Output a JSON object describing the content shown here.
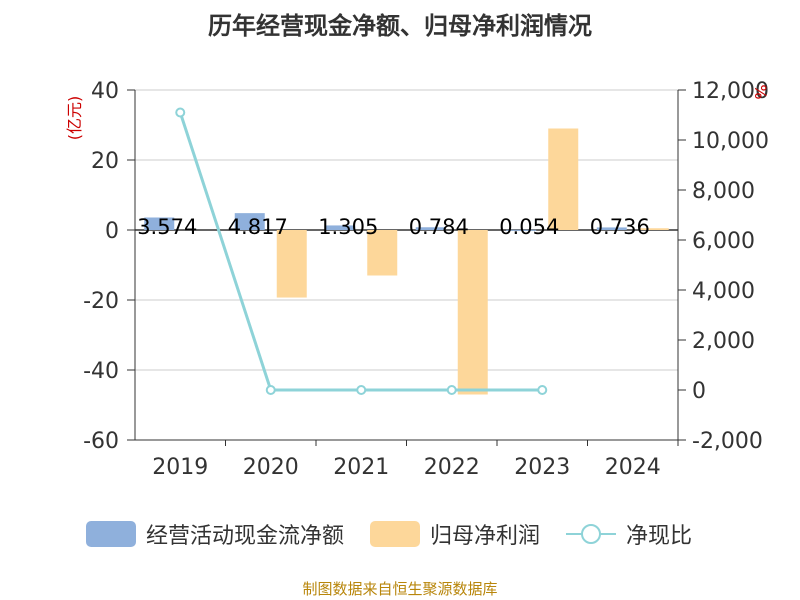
{
  "chart_data": {
    "type": "bar",
    "title": "历年经营现金净额、归母净利润情况",
    "source": "制图数据来自恒生聚源数据库",
    "categories": [
      "2019",
      "2020",
      "2021",
      "2022",
      "2023",
      "2024"
    ],
    "left_axis": {
      "unit_label": "(亿元)",
      "min": -60,
      "max": 40,
      "ticks": [
        "40",
        "20",
        "0",
        "-20",
        "-40",
        "-60"
      ]
    },
    "right_axis": {
      "unit_label": "%",
      "min": -2000,
      "max": 12000,
      "ticks": [
        "12,000",
        "10,000",
        "8,000",
        "6,000",
        "4,000",
        "2,000",
        "0",
        "-2,000"
      ]
    },
    "grid": true,
    "legend_position": "bottom",
    "series": [
      {
        "name": "经营活动现金流净额",
        "kind": "bar",
        "axis": "left",
        "color": "#8fb0dc",
        "values": [
          3.574,
          4.817,
          1.305,
          0.784,
          0.054,
          0.736
        ],
        "labels": [
          "3.574",
          "4.817",
          "1.305",
          "0.784",
          "0.054",
          "0.736"
        ]
      },
      {
        "name": "归母净利润",
        "kind": "bar",
        "axis": "left",
        "color": "#fdd79a",
        "values": [
          null,
          -19.3,
          -13.0,
          -47.0,
          29.0,
          0.5
        ]
      },
      {
        "name": "净现比",
        "kind": "line",
        "axis": "right",
        "color": "#8ed3d8",
        "values": [
          11100,
          0,
          0,
          0,
          0,
          null
        ]
      }
    ]
  }
}
